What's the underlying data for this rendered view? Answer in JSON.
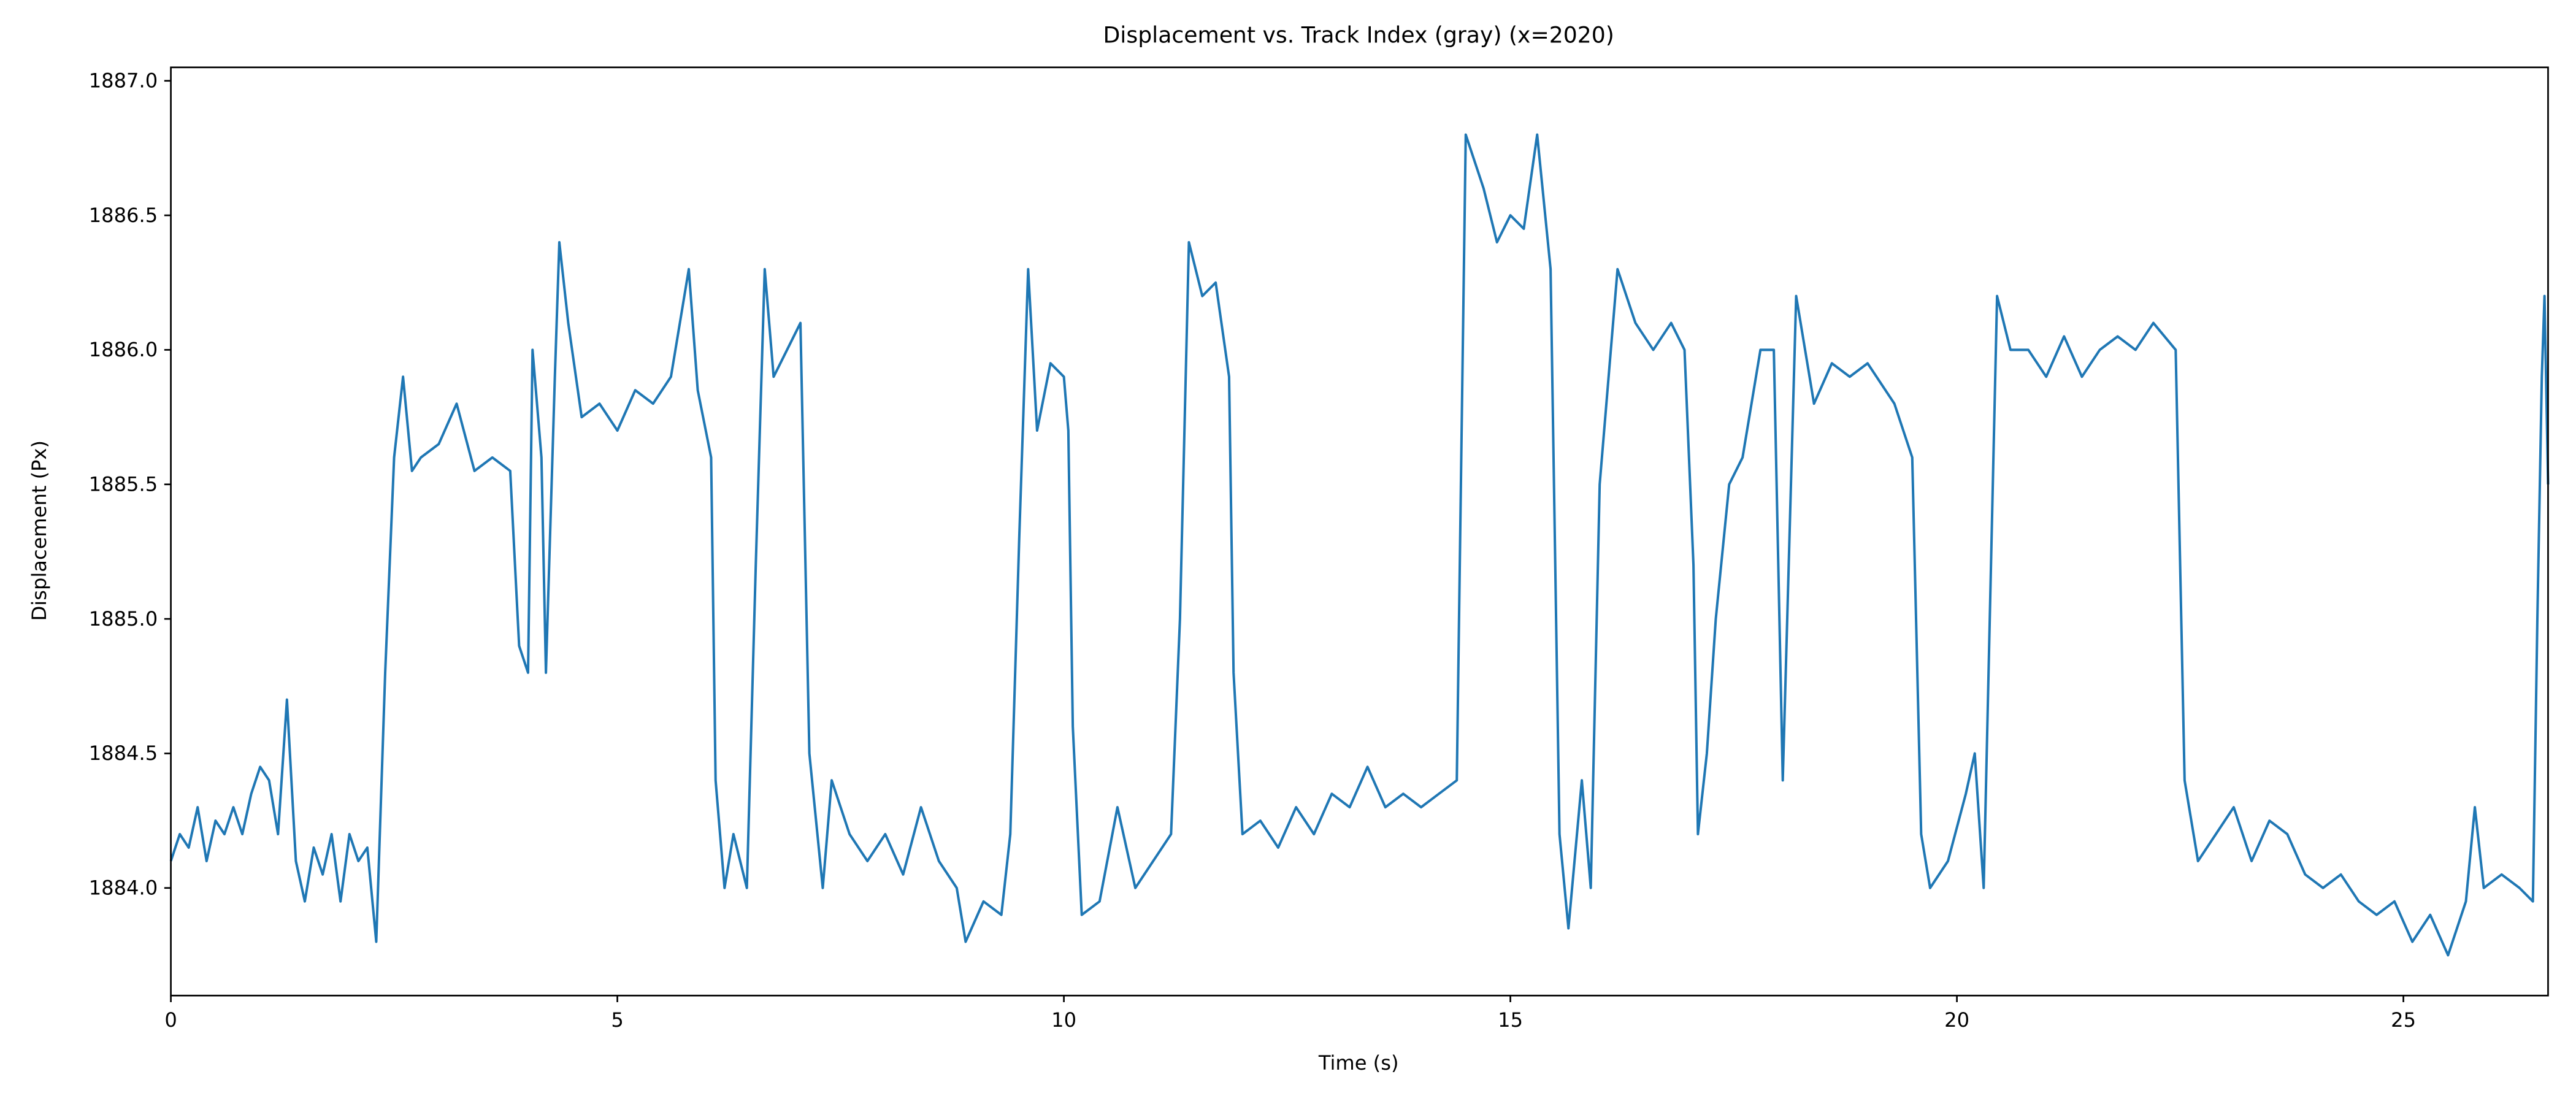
{
  "chart_data": {
    "type": "line",
    "title": "Displacement vs. Track Index (gray) (x=2020)",
    "x_label": "Time (s)",
    "y_label": "Displacement (Px)",
    "color": "#1f77b4",
    "grid": false,
    "xlim": [
      0,
      26.62
    ],
    "ylim": [
      1883.6,
      1887.05
    ],
    "xticks": [
      0,
      5,
      10,
      15,
      20,
      25
    ],
    "yticks": [
      {
        "value": 1884,
        "label": "1884.0"
      },
      1884.5,
      {
        "value": 1885,
        "label": "1885.0"
      },
      1885.5,
      {
        "value": 1886,
        "label": "1886.0"
      },
      1886.5,
      {
        "value": 1887,
        "label": "1887.0"
      }
    ],
    "x": [
      0,
      0.1,
      0.2,
      0.3,
      0.4,
      0.5,
      0.6,
      0.7,
      0.8,
      0.9,
      1.0,
      1.1,
      1.2,
      1.3,
      1.4,
      1.5,
      1.6,
      1.7,
      1.8,
      1.9,
      2.0,
      2.1,
      2.2,
      2.3,
      2.4,
      2.5,
      2.6,
      2.7,
      2.8,
      3.0,
      3.2,
      3.4,
      3.6,
      3.8,
      3.9,
      4.0,
      4.05,
      4.15,
      4.2,
      4.3,
      4.35,
      4.45,
      4.6,
      4.8,
      5.0,
      5.2,
      5.4,
      5.6,
      5.8,
      5.9,
      6.05,
      6.1,
      6.2,
      6.3,
      6.45,
      6.55,
      6.65,
      6.75,
      6.9,
      7.05,
      7.15,
      7.3,
      7.4,
      7.6,
      7.8,
      8.0,
      8.2,
      8.4,
      8.6,
      8.8,
      8.9,
      9.1,
      9.3,
      9.4,
      9.5,
      9.6,
      9.7,
      9.85,
      10.0,
      10.05,
      10.1,
      10.2,
      10.4,
      10.6,
      10.8,
      11.0,
      11.2,
      11.3,
      11.4,
      11.55,
      11.7,
      11.85,
      11.9,
      12.0,
      12.2,
      12.4,
      12.6,
      12.8,
      13.0,
      13.2,
      13.4,
      13.6,
      13.8,
      14.0,
      14.2,
      14.4,
      14.5,
      14.7,
      14.85,
      15.0,
      15.15,
      15.3,
      15.45,
      15.55,
      15.65,
      15.8,
      15.9,
      16.0,
      16.2,
      16.4,
      16.6,
      16.8,
      16.95,
      17.05,
      17.1,
      17.2,
      17.3,
      17.45,
      17.6,
      17.8,
      17.95,
      18.05,
      18.2,
      18.4,
      18.6,
      18.8,
      19.0,
      19.3,
      19.5,
      19.6,
      19.7,
      19.9,
      20.1,
      20.2,
      20.3,
      20.45,
      20.6,
      20.8,
      21.0,
      21.2,
      21.4,
      21.6,
      21.8,
      22.0,
      22.2,
      22.45,
      22.55,
      22.7,
      22.9,
      23.1,
      23.3,
      23.5,
      23.7,
      23.9,
      24.1,
      24.3,
      24.5,
      24.7,
      24.9,
      25.1,
      25.3,
      25.5,
      25.7,
      25.8,
      25.9,
      26.1,
      26.3,
      26.45,
      26.5,
      26.55,
      26.58,
      26.62
    ],
    "values": [
      1884.1,
      1884.2,
      1884.15,
      1884.3,
      1884.1,
      1884.25,
      1884.2,
      1884.3,
      1884.2,
      1884.35,
      1884.45,
      1884.4,
      1884.2,
      1884.7,
      1884.1,
      1883.95,
      1884.15,
      1884.05,
      1884.2,
      1883.95,
      1884.2,
      1884.1,
      1884.15,
      1883.8,
      1884.8,
      1885.6,
      1885.9,
      1885.55,
      1885.6,
      1885.65,
      1885.8,
      1885.55,
      1885.6,
      1885.55,
      1884.9,
      1884.8,
      1886.0,
      1885.6,
      1884.8,
      1885.9,
      1886.4,
      1886.1,
      1885.75,
      1885.8,
      1885.7,
      1885.85,
      1885.8,
      1885.9,
      1886.3,
      1885.85,
      1885.6,
      1884.4,
      1884.0,
      1884.2,
      1884.0,
      1885.2,
      1886.3,
      1885.9,
      1886.0,
      1886.1,
      1884.5,
      1884.0,
      1884.4,
      1884.2,
      1884.1,
      1884.2,
      1884.05,
      1884.3,
      1884.1,
      1884.0,
      1883.8,
      1883.95,
      1883.9,
      1884.2,
      1885.3,
      1886.3,
      1885.7,
      1885.95,
      1885.9,
      1885.7,
      1884.6,
      1883.9,
      1883.95,
      1884.3,
      1884.0,
      1884.1,
      1884.2,
      1885.0,
      1886.4,
      1886.2,
      1886.25,
      1885.9,
      1884.8,
      1884.2,
      1884.25,
      1884.15,
      1884.3,
      1884.2,
      1884.35,
      1884.3,
      1884.45,
      1884.3,
      1884.35,
      1884.3,
      1884.35,
      1884.4,
      1886.8,
      1886.6,
      1886.4,
      1886.5,
      1886.45,
      1886.8,
      1886.3,
      1884.2,
      1883.85,
      1884.4,
      1884.0,
      1885.5,
      1886.3,
      1886.1,
      1886.0,
      1886.1,
      1886.0,
      1885.2,
      1884.2,
      1884.5,
      1885.0,
      1885.5,
      1885.6,
      1886.0,
      1886.0,
      1884.4,
      1886.2,
      1885.8,
      1885.95,
      1885.9,
      1885.95,
      1885.8,
      1885.6,
      1884.2,
      1884.0,
      1884.1,
      1884.35,
      1884.5,
      1884.0,
      1886.2,
      1886.0,
      1886.0,
      1885.9,
      1886.05,
      1885.9,
      1886.0,
      1886.05,
      1886.0,
      1886.1,
      1886.0,
      1884.4,
      1884.1,
      1884.2,
      1884.3,
      1884.1,
      1884.25,
      1884.2,
      1884.05,
      1884.0,
      1884.05,
      1883.95,
      1883.9,
      1883.95,
      1883.8,
      1883.9,
      1883.75,
      1883.95,
      1884.3,
      1884.0,
      1884.05,
      1884.0,
      1883.95,
      1885.0,
      1885.9,
      1886.2,
      1885.5
    ]
  }
}
